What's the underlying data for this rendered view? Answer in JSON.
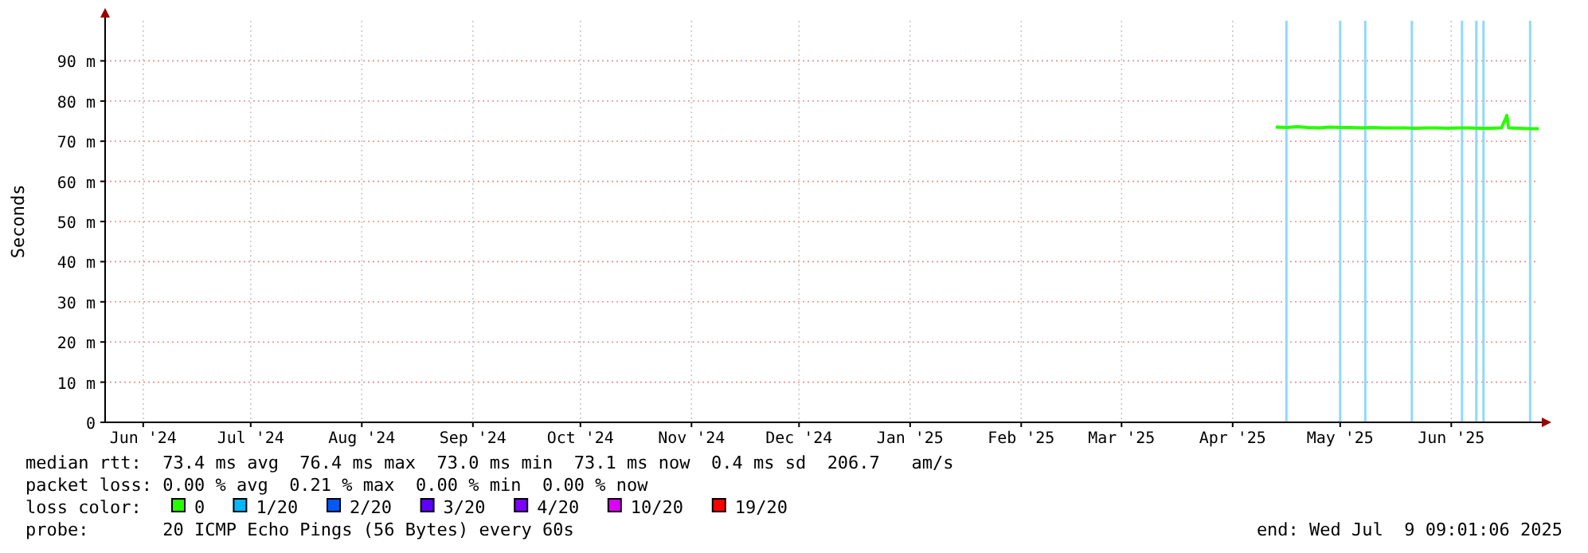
{
  "chart_data": {
    "type": "line",
    "ylabel": "Seconds",
    "legend_title": "loss color:",
    "legend": "bottom",
    "grid": true,
    "xlim": [
      "2024-06-04T09:01",
      "2025-07-09T09:01"
    ],
    "xticks": [
      {
        "value": "2024-06-15",
        "label": "Jun '24"
      },
      {
        "value": "2024-07-15",
        "label": "Jul '24"
      },
      {
        "value": "2024-08-15",
        "label": "Aug '24"
      },
      {
        "value": "2024-09-15",
        "label": "Sep '24"
      },
      {
        "value": "2024-10-15",
        "label": "Oct '24"
      },
      {
        "value": "2024-11-15",
        "label": "Nov '24"
      },
      {
        "value": "2024-12-15",
        "label": "Dec '24"
      },
      {
        "value": "2025-01-15",
        "label": "Jan '25"
      },
      {
        "value": "2025-02-15",
        "label": "Feb '25"
      },
      {
        "value": "2025-03-15",
        "label": "Mar '25"
      },
      {
        "value": "2025-04-15",
        "label": "Apr '25"
      },
      {
        "value": "2025-05-15",
        "label": "May '25"
      },
      {
        "value": "2025-06-15",
        "label": "Jun '25"
      }
    ],
    "ylim": [
      0,
      100
    ],
    "yticks": [
      0,
      {
        "value": 10,
        "label": "10 m"
      },
      {
        "value": 20,
        "label": "20 m"
      },
      {
        "value": 30,
        "label": "30 m"
      },
      {
        "value": 40,
        "label": "40 m"
      },
      {
        "value": 50,
        "label": "50 m"
      },
      {
        "value": 60,
        "label": "60 m"
      },
      {
        "value": 70,
        "label": "70 m"
      },
      {
        "value": 80,
        "label": "80 m"
      },
      {
        "value": 90,
        "label": "90 m"
      }
    ],
    "x": [
      "2025-04-27",
      "2025-04-30",
      "2025-05-03",
      "2025-05-06",
      "2025-05-09",
      "2025-05-12",
      "2025-05-15",
      "2025-05-18",
      "2025-05-21",
      "2025-05-24",
      "2025-05-27",
      "2025-05-30",
      "2025-06-02",
      "2025-06-05",
      "2025-06-08",
      "2025-06-11",
      "2025-06-14",
      "2025-06-17",
      "2025-06-20",
      "2025-06-23",
      "2025-06-26",
      "2025-06-29",
      "2025-06-30T12:00",
      "2025-07-01",
      "2025-07-04",
      "2025-07-07",
      "2025-07-09T09:00"
    ],
    "series": [
      {
        "name": "0",
        "color": "#26ff00",
        "values": [
          73.5,
          73.4,
          73.6,
          73.4,
          73.3,
          73.5,
          73.4,
          73.4,
          73.3,
          73.4,
          73.3,
          73.3,
          73.3,
          73.2,
          73.3,
          73.3,
          73.2,
          73.3,
          73.3,
          73.2,
          73.2,
          73.3,
          76.4,
          73.3,
          73.2,
          73.1,
          73.1
        ]
      },
      {
        "name": "1/20",
        "color": "#00b8ff",
        "values": [
          null,
          null,
          null,
          null,
          null,
          null,
          null,
          null,
          null,
          null,
          null,
          null,
          null,
          null,
          null,
          null,
          null,
          null,
          null,
          null,
          null,
          null,
          null,
          null,
          null,
          null,
          null
        ]
      },
      {
        "name": "2/20",
        "color": "#0059ff",
        "values": [
          null,
          null,
          null,
          null,
          null,
          null,
          null,
          null,
          null,
          null,
          null,
          null,
          null,
          null,
          null,
          null,
          null,
          null,
          null,
          null,
          null,
          null,
          null,
          null,
          null,
          null,
          null
        ]
      },
      {
        "name": "3/20",
        "color": "#5e00ff",
        "values": [
          null,
          null,
          null,
          null,
          null,
          null,
          null,
          null,
          null,
          null,
          null,
          null,
          null,
          null,
          null,
          null,
          null,
          null,
          null,
          null,
          null,
          null,
          null,
          null,
          null,
          null,
          null
        ]
      },
      {
        "name": "4/20",
        "color": "#7e00ff",
        "values": [
          null,
          null,
          null,
          null,
          null,
          null,
          null,
          null,
          null,
          null,
          null,
          null,
          null,
          null,
          null,
          null,
          null,
          null,
          null,
          null,
          null,
          null,
          null,
          null,
          null,
          null,
          null
        ]
      },
      {
        "name": "10/20",
        "color": "#dd00ff",
        "values": [
          null,
          null,
          null,
          null,
          null,
          null,
          null,
          null,
          null,
          null,
          null,
          null,
          null,
          null,
          null,
          null,
          null,
          null,
          null,
          null,
          null,
          null,
          null,
          null,
          null,
          null,
          null
        ]
      },
      {
        "name": "19/20",
        "color": "#ff0000",
        "values": [
          null,
          null,
          null,
          null,
          null,
          null,
          null,
          null,
          null,
          null,
          null,
          null,
          null,
          null,
          null,
          null,
          null,
          null,
          null,
          null,
          null,
          null,
          null,
          null,
          null,
          null,
          null
        ]
      }
    ],
    "ref_lines": [
      {
        "axis": "x",
        "value": "2025-04-30",
        "color": "#8fd8ff"
      },
      {
        "axis": "x",
        "value": "2025-05-15",
        "color": "#8fd8ff"
      },
      {
        "axis": "x",
        "value": "2025-05-22",
        "color": "#8fd8ff"
      },
      {
        "axis": "x",
        "value": "2025-06-04",
        "color": "#8fd8ff"
      },
      {
        "axis": "x",
        "value": "2025-06-18",
        "color": "#8fd8ff"
      },
      {
        "axis": "x",
        "value": "2025-06-22",
        "color": "#8fd8ff"
      },
      {
        "axis": "x",
        "value": "2025-06-24",
        "color": "#8fd8ff"
      },
      {
        "axis": "x",
        "value": "2025-07-07",
        "color": "#8fd8ff"
      }
    ],
    "annotations": [
      "median rtt:  73.4 ms avg  76.4 ms max  73.0 ms min  73.1 ms now  0.4 ms sd  206.7   am/s",
      "packet loss: 0.00 % avg  0.21 % max  0.00 % min  0.00 % now",
      "probe:       20 ICMP Echo Pings (56 Bytes) every 60s",
      "end: Wed Jul  9 09:01:06 2025"
    ]
  }
}
